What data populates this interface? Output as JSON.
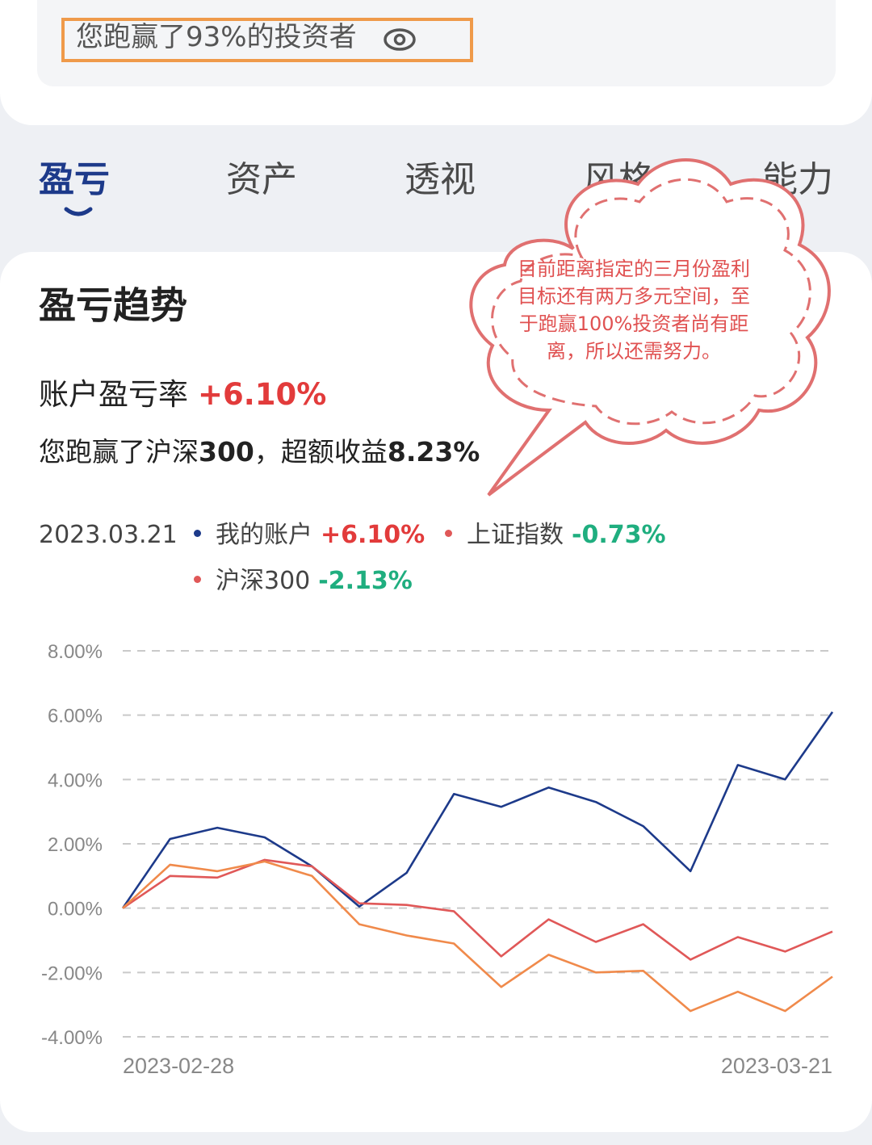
{
  "ranking": {
    "text": "您跑赢了93%的投资者"
  },
  "tabs": [
    {
      "label": "盈亏",
      "active": true
    },
    {
      "label": "资产",
      "active": false
    },
    {
      "label": "透视",
      "active": false
    },
    {
      "label": "风格",
      "active": false
    },
    {
      "label": "能力",
      "active": false
    }
  ],
  "section_title": "盈亏趋势",
  "account_rate": {
    "label": "账户盈亏率",
    "value": "+6.10%"
  },
  "beat": {
    "prefix": "您跑赢了沪深",
    "bold1": "300",
    "middle": "，超额收益",
    "bold2": "8.23%"
  },
  "legend": {
    "date": "2023.03.21",
    "items": [
      {
        "name": "我的账户",
        "value": "+6.10%",
        "color": "#1d3a8a",
        "sign": "pos"
      },
      {
        "name": "上证指数",
        "value": "-0.73%",
        "color": "#e05858",
        "sign": "neg"
      },
      {
        "name": "沪深300",
        "value": "-2.13%",
        "color": "#e05858",
        "sign": "neg"
      }
    ]
  },
  "annotation": {
    "text": "目前距离指定的三月份盈利目标还有两万多元空间，至于跑赢100%投资者尚有距离，所以还需努力。"
  },
  "chart_data": {
    "type": "line",
    "x_start_label": "2023-02-28",
    "x_end_label": "2023-03-21",
    "y_ticks": [
      "8.00%",
      "6.00%",
      "4.00%",
      "2.00%",
      "0.00%",
      "-2.00%",
      "-4.00%"
    ],
    "ylim": [
      -4,
      8
    ],
    "grid": true,
    "series": [
      {
        "name": "我的账户",
        "color": "#1d3a8a",
        "values": [
          0.0,
          2.15,
          2.5,
          2.2,
          1.3,
          0.05,
          1.1,
          3.55,
          3.15,
          3.75,
          3.3,
          2.55,
          1.15,
          4.45,
          4.0,
          6.1
        ]
      },
      {
        "name": "上证指数",
        "color": "#e05858",
        "values": [
          0.0,
          1.0,
          0.95,
          1.5,
          1.3,
          0.15,
          0.1,
          -0.1,
          -1.5,
          -0.35,
          -1.05,
          -0.5,
          -1.6,
          -0.9,
          -1.35,
          -0.73
        ]
      },
      {
        "name": "沪深300",
        "color": "#f08a4b",
        "values": [
          0.0,
          1.35,
          1.15,
          1.45,
          1.0,
          -0.5,
          -0.85,
          -1.1,
          -2.45,
          -1.45,
          -2.0,
          -1.95,
          -3.2,
          -2.6,
          -3.2,
          -2.13
        ]
      }
    ]
  }
}
